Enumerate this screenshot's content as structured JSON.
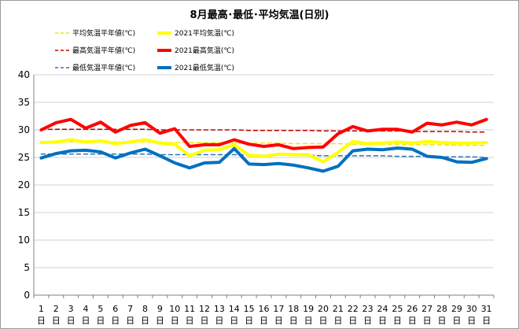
{
  "chart_data": {
    "type": "line",
    "title": "8月最高･最低･平均気温(日別)",
    "xlabel": "",
    "ylabel": "",
    "x_suffix": "日",
    "ylim": [
      0,
      40
    ],
    "yticks": [
      0,
      5,
      10,
      15,
      20,
      25,
      30,
      35,
      40
    ],
    "grid": "horizontal",
    "legend": "top",
    "x": [
      "1",
      "2",
      "3",
      "4",
      "5",
      "6",
      "7",
      "8",
      "9",
      "10",
      "11",
      "12",
      "13",
      "14",
      "15",
      "16",
      "17",
      "18",
      "19",
      "20",
      "21",
      "22",
      "23",
      "24",
      "25",
      "26",
      "27",
      "28",
      "29",
      "30",
      "31"
    ],
    "series": [
      {
        "name": "平均気温平年値(℃)",
        "color": "#f2e600",
        "style": "dashed",
        "values": [
          27.8,
          27.8,
          27.8,
          27.8,
          27.8,
          27.8,
          27.8,
          27.8,
          27.7,
          27.7,
          27.7,
          27.7,
          27.7,
          27.6,
          27.6,
          27.6,
          27.6,
          27.5,
          27.5,
          27.5,
          27.5,
          27.4,
          27.4,
          27.4,
          27.4,
          27.3,
          27.3,
          27.3,
          27.2,
          27.2,
          27.2
        ]
      },
      {
        "name": "2021平均気温(℃)",
        "color": "#ffff00",
        "style": "solid",
        "values": [
          27.7,
          27.8,
          28.2,
          27.8,
          28.0,
          27.5,
          27.8,
          28.2,
          27.6,
          27.4,
          25.3,
          26.3,
          26.4,
          27.3,
          25.4,
          25.2,
          25.6,
          25.5,
          25.5,
          24.2,
          25.9,
          27.9,
          27.5,
          27.6,
          27.8,
          27.6,
          27.9,
          27.7,
          27.6,
          27.6,
          27.7
        ]
      },
      {
        "name": "最高気温平年値(℃)",
        "color": "#c00000",
        "style": "dashed",
        "values": [
          30.1,
          30.1,
          30.1,
          30.1,
          30.1,
          30.1,
          30.1,
          30.1,
          30.0,
          30.0,
          30.0,
          30.0,
          30.0,
          30.0,
          29.9,
          29.9,
          29.9,
          29.9,
          29.9,
          29.8,
          29.8,
          29.8,
          29.8,
          29.8,
          29.8,
          29.7,
          29.7,
          29.7,
          29.7,
          29.6,
          29.6
        ]
      },
      {
        "name": "2021最高気温(℃)",
        "color": "#ff0000",
        "style": "solid",
        "values": [
          30.0,
          31.3,
          31.9,
          30.3,
          31.4,
          29.6,
          30.8,
          31.3,
          29.4,
          30.2,
          27.0,
          27.3,
          27.3,
          28.2,
          27.4,
          27.0,
          27.3,
          26.6,
          26.8,
          26.9,
          29.3,
          30.6,
          29.8,
          30.1,
          30.1,
          29.6,
          31.2,
          30.9,
          31.4,
          30.9,
          31.9
        ]
      },
      {
        "name": "最低気温平年値(℃)",
        "color": "#2e74b5",
        "style": "dashed",
        "values": [
          25.6,
          25.6,
          25.6,
          25.6,
          25.6,
          25.6,
          25.6,
          25.6,
          25.5,
          25.5,
          25.5,
          25.5,
          25.5,
          25.5,
          25.4,
          25.4,
          25.4,
          25.4,
          25.4,
          25.3,
          25.3,
          25.3,
          25.3,
          25.3,
          25.2,
          25.2,
          25.2,
          25.1,
          25.1,
          25.1,
          25.0
        ]
      },
      {
        "name": "2021最低気温(℃)",
        "color": "#0070c0",
        "style": "solid",
        "values": [
          24.9,
          25.7,
          26.2,
          26.3,
          26.0,
          24.9,
          25.8,
          26.5,
          25.3,
          24.0,
          23.1,
          24.0,
          24.1,
          26.6,
          23.8,
          23.7,
          23.9,
          23.6,
          23.1,
          22.5,
          23.4,
          26.2,
          26.5,
          26.4,
          26.7,
          26.5,
          25.2,
          25.0,
          24.2,
          24.1,
          24.8
        ]
      }
    ]
  }
}
